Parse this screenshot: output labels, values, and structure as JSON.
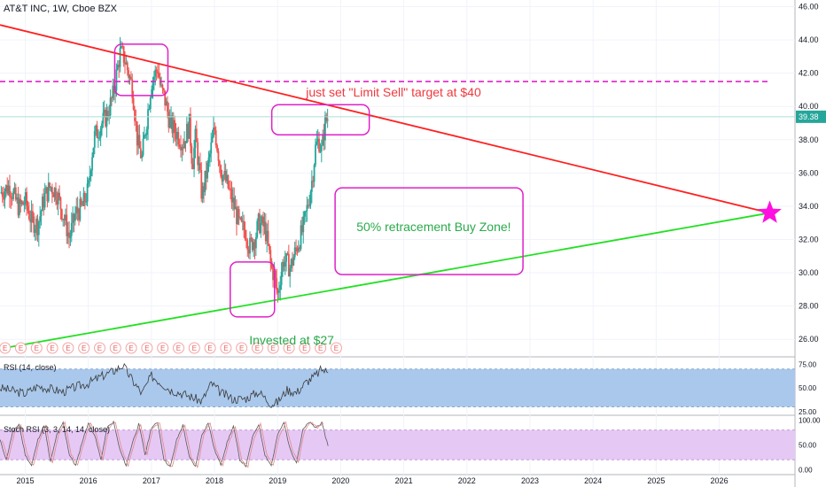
{
  "chart_data": {
    "type": "candlestick",
    "title": "AT&T INC, 1W, Cboe BZX",
    "price_axis": {
      "ticks": [
        "46.00",
        "44.00",
        "42.00",
        "40.00",
        "38.00",
        "36.00",
        "34.00",
        "32.00",
        "30.00",
        "28.00",
        "26.00"
      ],
      "ylim": [
        25,
        46.4
      ],
      "last_price": "39.38"
    },
    "x_axis": {
      "ticks": [
        "2015",
        "2016",
        "2017",
        "2018",
        "2019",
        "2020",
        "2021",
        "2022",
        "2023",
        "2024",
        "2025",
        "2026"
      ],
      "xlim": [
        2014.6,
        2027.2
      ]
    },
    "price_series": [
      [
        2014.6,
        34.8
      ],
      [
        2014.75,
        35.2
      ],
      [
        2014.9,
        33.9
      ],
      [
        2015.0,
        34.3
      ],
      [
        2015.1,
        33.1
      ],
      [
        2015.2,
        32.9
      ],
      [
        2015.3,
        34.5
      ],
      [
        2015.4,
        35.2
      ],
      [
        2015.5,
        34.8
      ],
      [
        2015.6,
        33.5
      ],
      [
        2015.7,
        32.1
      ],
      [
        2015.8,
        33.6
      ],
      [
        2015.9,
        33.9
      ],
      [
        2016.0,
        35.0
      ],
      [
        2016.05,
        37.0
      ],
      [
        2016.1,
        38.2
      ],
      [
        2016.2,
        38.9
      ],
      [
        2016.3,
        39.5
      ],
      [
        2016.4,
        40.8
      ],
      [
        2016.5,
        43.2
      ],
      [
        2016.55,
        43.1
      ],
      [
        2016.6,
        42.5
      ],
      [
        2016.7,
        41.1
      ],
      [
        2016.78,
        37.8
      ],
      [
        2016.85,
        36.9
      ],
      [
        2016.95,
        39.9
      ],
      [
        2017.0,
        41.5
      ],
      [
        2017.1,
        42.3
      ],
      [
        2017.15,
        41.0
      ],
      [
        2017.2,
        40.6
      ],
      [
        2017.3,
        38.9
      ],
      [
        2017.4,
        38.4
      ],
      [
        2017.5,
        37.8
      ],
      [
        2017.6,
        38.9
      ],
      [
        2017.65,
        36.5
      ],
      [
        2017.7,
        38.2
      ],
      [
        2017.8,
        34.6
      ],
      [
        2017.9,
        36.5
      ],
      [
        2018.0,
        38.7
      ],
      [
        2018.1,
        36.2
      ],
      [
        2018.2,
        35.3
      ],
      [
        2018.3,
        34.1
      ],
      [
        2018.4,
        32.8
      ],
      [
        2018.5,
        32.5
      ],
      [
        2018.55,
        31.5
      ],
      [
        2018.65,
        32.2
      ],
      [
        2018.7,
        33.0
      ],
      [
        2018.8,
        32.7
      ],
      [
        2018.9,
        30.3
      ],
      [
        2018.95,
        29.8
      ],
      [
        2019.0,
        28.6
      ],
      [
        2019.05,
        30.0
      ],
      [
        2019.1,
        30.8
      ],
      [
        2019.2,
        30.3
      ],
      [
        2019.3,
        31.5
      ],
      [
        2019.4,
        32.6
      ],
      [
        2019.5,
        34.5
      ],
      [
        2019.55,
        35.7
      ],
      [
        2019.6,
        37.5
      ],
      [
        2019.65,
        38.0
      ],
      [
        2019.7,
        37.3
      ],
      [
        2019.75,
        39.0
      ],
      [
        2019.8,
        39.4
      ]
    ],
    "trendlines": [
      {
        "kind": "resistance",
        "color": "#ff2020",
        "x": [
          2014.6,
          2026.8
        ],
        "y": [
          44.9,
          33.6
        ]
      },
      {
        "kind": "support",
        "color": "#22e022",
        "x": [
          2014.7,
          2026.8
        ],
        "y": [
          25.5,
          33.6
        ]
      }
    ],
    "horizontal_levels": [
      {
        "price": 41.5,
        "color": "#e020c8",
        "style": "dashed",
        "x": [
          2014.6,
          2026.8
        ]
      },
      {
        "price": 39.38,
        "color": "#aedfd6",
        "style": "solid",
        "x": [
          2014.6,
          2027.2
        ]
      }
    ],
    "annotations": [
      {
        "text": "just set \"Limit Sell\" target at $40",
        "color": "#f0393f",
        "x": 2019.45,
        "y": 40.6
      },
      {
        "text": "50% retracement Buy Zone!",
        "color": "#2aaa4a",
        "x": 2020.25,
        "y": 32.5
      },
      {
        "text": "Invested at $27",
        "color": "#2aaa4a",
        "x": 2018.55,
        "y": 25.7
      }
    ],
    "event_label": "E",
    "events_x": [
      2014.68,
      2014.93,
      2015.18,
      2015.43,
      2015.68,
      2015.93,
      2016.18,
      2016.43,
      2016.68,
      2016.93,
      2017.18,
      2017.43,
      2017.68,
      2017.93,
      2018.18,
      2018.43,
      2018.68,
      2018.93,
      2019.18,
      2019.43,
      2019.68,
      2019.93
    ],
    "rsi": {
      "label": "RSI (14, close)",
      "ticks": [
        "75.00",
        "50.00",
        "25.00"
      ],
      "ylim": [
        22,
        82
      ],
      "band": [
        30,
        70
      ],
      "values": [
        [
          2014.6,
          50
        ],
        [
          2014.8,
          47
        ],
        [
          2015.0,
          44
        ],
        [
          2015.2,
          52
        ],
        [
          2015.4,
          49
        ],
        [
          2015.6,
          46
        ],
        [
          2015.8,
          51
        ],
        [
          2016.0,
          55
        ],
        [
          2016.2,
          62
        ],
        [
          2016.4,
          68
        ],
        [
          2016.55,
          74
        ],
        [
          2016.7,
          58
        ],
        [
          2016.85,
          44
        ],
        [
          2017.0,
          63
        ],
        [
          2017.1,
          58
        ],
        [
          2017.3,
          48
        ],
        [
          2017.5,
          44
        ],
        [
          2017.65,
          40
        ],
        [
          2017.8,
          36
        ],
        [
          2017.95,
          55
        ],
        [
          2018.1,
          45
        ],
        [
          2018.3,
          38
        ],
        [
          2018.5,
          39
        ],
        [
          2018.7,
          46
        ],
        [
          2018.9,
          33
        ],
        [
          2019.0,
          35
        ],
        [
          2019.15,
          48
        ],
        [
          2019.3,
          45
        ],
        [
          2019.45,
          56
        ],
        [
          2019.6,
          63
        ],
        [
          2019.7,
          70
        ],
        [
          2019.8,
          66
        ]
      ]
    },
    "stoch_rsi": {
      "label": "Stoch RSI (3, 3, 14, 14, close)",
      "ticks": [
        "100.00",
        "50.00",
        "0.00"
      ],
      "ylim": [
        -10,
        108
      ],
      "band": [
        20,
        80
      ],
      "k": [
        [
          2014.6,
          60
        ],
        [
          2014.7,
          20
        ],
        [
          2014.8,
          75
        ],
        [
          2014.9,
          92
        ],
        [
          2015.0,
          30
        ],
        [
          2015.1,
          8
        ],
        [
          2015.2,
          60
        ],
        [
          2015.3,
          90
        ],
        [
          2015.4,
          15
        ],
        [
          2015.5,
          70
        ],
        [
          2015.6,
          95
        ],
        [
          2015.7,
          30
        ],
        [
          2015.8,
          8
        ],
        [
          2015.9,
          55
        ],
        [
          2016.0,
          94
        ],
        [
          2016.1,
          70
        ],
        [
          2016.2,
          20
        ],
        [
          2016.3,
          85
        ],
        [
          2016.4,
          96
        ],
        [
          2016.5,
          40
        ],
        [
          2016.6,
          8
        ],
        [
          2016.7,
          55
        ],
        [
          2016.8,
          92
        ],
        [
          2016.9,
          30
        ],
        [
          2017.0,
          85
        ],
        [
          2017.1,
          95
        ],
        [
          2017.2,
          20
        ],
        [
          2017.3,
          5
        ],
        [
          2017.4,
          60
        ],
        [
          2017.5,
          90
        ],
        [
          2017.6,
          25
        ],
        [
          2017.7,
          6
        ],
        [
          2017.8,
          70
        ],
        [
          2017.9,
          95
        ],
        [
          2018.0,
          40
        ],
        [
          2018.1,
          10
        ],
        [
          2018.2,
          55
        ],
        [
          2018.3,
          88
        ],
        [
          2018.4,
          20
        ],
        [
          2018.5,
          7
        ],
        [
          2018.6,
          65
        ],
        [
          2018.7,
          92
        ],
        [
          2018.8,
          30
        ],
        [
          2018.9,
          8
        ],
        [
          2019.0,
          70
        ],
        [
          2019.1,
          95
        ],
        [
          2019.2,
          40
        ],
        [
          2019.3,
          15
        ],
        [
          2019.4,
          80
        ],
        [
          2019.5,
          96
        ],
        [
          2019.6,
          85
        ],
        [
          2019.7,
          94
        ],
        [
          2019.8,
          48
        ]
      ]
    },
    "style": {
      "up_color": "#26a69a",
      "down_color": "#ef5350",
      "rsi_band_fill": "#a9c8ec",
      "stoch_band_fill": "#e6c8f5",
      "circle_color": "#e020c8",
      "star_color": "#ff10e0",
      "grid": "true"
    }
  }
}
